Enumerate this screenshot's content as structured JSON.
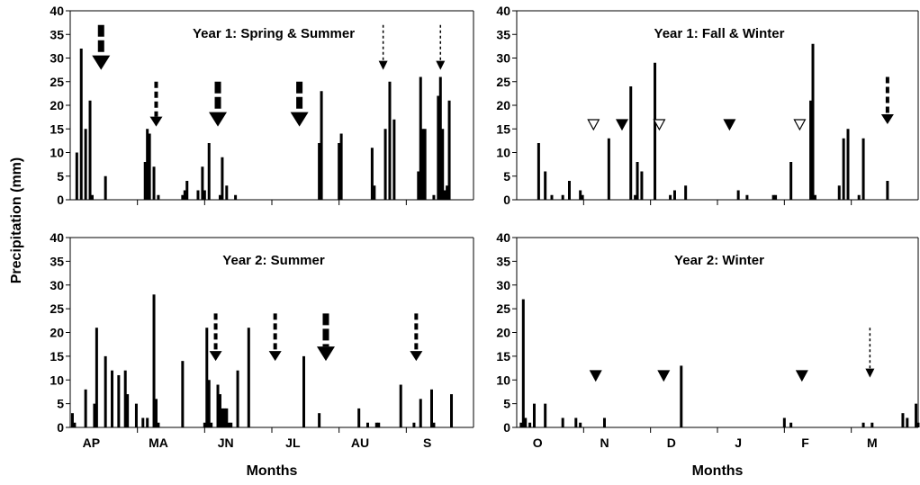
{
  "figure": {
    "ylabel": "Precipitation (mm)",
    "xlabel": "Months"
  },
  "chart_data": [
    {
      "type": "bar",
      "title": "Year 1: Spring & Summer",
      "xlabel": "",
      "ylabel": "Precipitation (mm)",
      "ylim": [
        0,
        40
      ],
      "yticks": [
        0,
        5,
        10,
        15,
        20,
        25,
        30,
        35,
        40
      ],
      "grid": false,
      "xlim": [
        0,
        183
      ],
      "month_labels": [],
      "bars": [
        {
          "x": 3,
          "y": 10
        },
        {
          "x": 5,
          "y": 32
        },
        {
          "x": 7,
          "y": 15
        },
        {
          "x": 9,
          "y": 21
        },
        {
          "x": 10,
          "y": 1
        },
        {
          "x": 16,
          "y": 5
        },
        {
          "x": 34,
          "y": 8
        },
        {
          "x": 35,
          "y": 15
        },
        {
          "x": 36,
          "y": 14
        },
        {
          "x": 38,
          "y": 7
        },
        {
          "x": 40,
          "y": 1
        },
        {
          "x": 51,
          "y": 1
        },
        {
          "x": 52,
          "y": 2
        },
        {
          "x": 53,
          "y": 4
        },
        {
          "x": 58,
          "y": 2
        },
        {
          "x": 60,
          "y": 7
        },
        {
          "x": 61,
          "y": 2
        },
        {
          "x": 63,
          "y": 12
        },
        {
          "x": 68,
          "y": 1
        },
        {
          "x": 69,
          "y": 9
        },
        {
          "x": 71,
          "y": 3
        },
        {
          "x": 75,
          "y": 1
        },
        {
          "x": 113,
          "y": 12
        },
        {
          "x": 114,
          "y": 23
        },
        {
          "x": 122,
          "y": 12
        },
        {
          "x": 123,
          "y": 14
        },
        {
          "x": 137,
          "y": 11
        },
        {
          "x": 138,
          "y": 3
        },
        {
          "x": 143,
          "y": 15
        },
        {
          "x": 145,
          "y": 25
        },
        {
          "x": 147,
          "y": 17
        },
        {
          "x": 158,
          "y": 6
        },
        {
          "x": 159,
          "y": 26
        },
        {
          "x": 160,
          "y": 15
        },
        {
          "x": 161,
          "y": 15
        },
        {
          "x": 165,
          "y": 1
        },
        {
          "x": 167,
          "y": 22
        },
        {
          "x": 168,
          "y": 26
        },
        {
          "x": 169,
          "y": 15
        },
        {
          "x": 170,
          "y": 2
        },
        {
          "x": 171,
          "y": 3
        },
        {
          "x": 172,
          "y": 21
        }
      ],
      "markers": [
        {
          "style": "thick-arrow",
          "x": 14,
          "y_top": 37,
          "y_tip": 27.5
        },
        {
          "style": "dashed-arrow",
          "x": 39,
          "y_top": 25,
          "y_tip": 15.5
        },
        {
          "style": "thick-arrow",
          "x": 67,
          "y_top": 25,
          "y_tip": 15.5
        },
        {
          "style": "thick-arrow",
          "x": 104,
          "y_top": 25,
          "y_tip": 15.5
        },
        {
          "style": "dotted-arrow",
          "x": 142,
          "y_top": 37,
          "y_tip": 27.5
        },
        {
          "style": "dotted-arrow",
          "x": 168,
          "y_top": 37,
          "y_tip": 27.5
        }
      ]
    },
    {
      "type": "bar",
      "title": "Year 1: Fall & Winter",
      "xlabel": "",
      "ylabel": "",
      "ylim": [
        0,
        40
      ],
      "yticks": [
        0,
        5,
        10,
        15,
        20,
        25,
        30,
        35,
        40
      ],
      "grid": false,
      "xlim": [
        0,
        183
      ],
      "month_labels": [],
      "bars": [
        {
          "x": 10,
          "y": 12
        },
        {
          "x": 13,
          "y": 6
        },
        {
          "x": 16,
          "y": 1
        },
        {
          "x": 21,
          "y": 1
        },
        {
          "x": 24,
          "y": 4
        },
        {
          "x": 29,
          "y": 2
        },
        {
          "x": 30,
          "y": 1
        },
        {
          "x": 42,
          "y": 13
        },
        {
          "x": 52,
          "y": 24
        },
        {
          "x": 54,
          "y": 1
        },
        {
          "x": 55,
          "y": 8
        },
        {
          "x": 57,
          "y": 6
        },
        {
          "x": 63,
          "y": 29
        },
        {
          "x": 70,
          "y": 1
        },
        {
          "x": 72,
          "y": 2
        },
        {
          "x": 77,
          "y": 3
        },
        {
          "x": 101,
          "y": 2
        },
        {
          "x": 105,
          "y": 1
        },
        {
          "x": 117,
          "y": 1
        },
        {
          "x": 118,
          "y": 1
        },
        {
          "x": 125,
          "y": 8
        },
        {
          "x": 134,
          "y": 21
        },
        {
          "x": 135,
          "y": 33
        },
        {
          "x": 136,
          "y": 1
        },
        {
          "x": 147,
          "y": 3
        },
        {
          "x": 149,
          "y": 13
        },
        {
          "x": 151,
          "y": 15
        },
        {
          "x": 156,
          "y": 1
        },
        {
          "x": 158,
          "y": 13
        },
        {
          "x": 169,
          "y": 4
        }
      ],
      "markers": [
        {
          "style": "open-triangle",
          "x": 35,
          "y": 16
        },
        {
          "style": "filled-triangle",
          "x": 48,
          "y": 16
        },
        {
          "style": "open-triangle",
          "x": 65,
          "y": 16
        },
        {
          "style": "filled-triangle",
          "x": 97,
          "y": 16
        },
        {
          "style": "open-triangle",
          "x": 129,
          "y": 16
        },
        {
          "style": "dashed-arrow",
          "x": 169,
          "y_top": 26,
          "y_tip": 16
        }
      ]
    },
    {
      "type": "bar",
      "title": "Year 2: Summer",
      "xlabel": "Months",
      "ylabel": "Precipitation (mm)",
      "ylim": [
        0,
        40
      ],
      "yticks": [
        0,
        5,
        10,
        15,
        20,
        25,
        30,
        35,
        40
      ],
      "grid": false,
      "xlim": [
        0,
        183
      ],
      "month_labels": [
        "AP",
        "MA",
        "JN",
        "JL",
        "AU",
        "S"
      ],
      "bars": [
        {
          "x": 1,
          "y": 3
        },
        {
          "x": 2,
          "y": 1
        },
        {
          "x": 7,
          "y": 8
        },
        {
          "x": 11,
          "y": 5
        },
        {
          "x": 12,
          "y": 21
        },
        {
          "x": 16,
          "y": 15
        },
        {
          "x": 19,
          "y": 12
        },
        {
          "x": 22,
          "y": 11
        },
        {
          "x": 25,
          "y": 12
        },
        {
          "x": 26,
          "y": 7
        },
        {
          "x": 30,
          "y": 5
        },
        {
          "x": 33,
          "y": 2
        },
        {
          "x": 35,
          "y": 2
        },
        {
          "x": 38,
          "y": 28
        },
        {
          "x": 39,
          "y": 6
        },
        {
          "x": 40,
          "y": 1
        },
        {
          "x": 51,
          "y": 14
        },
        {
          "x": 61,
          "y": 1
        },
        {
          "x": 62,
          "y": 21
        },
        {
          "x": 63,
          "y": 10
        },
        {
          "x": 64,
          "y": 1
        },
        {
          "x": 67,
          "y": 9
        },
        {
          "x": 68,
          "y": 7
        },
        {
          "x": 69,
          "y": 4
        },
        {
          "x": 70,
          "y": 4
        },
        {
          "x": 71,
          "y": 4
        },
        {
          "x": 72,
          "y": 1
        },
        {
          "x": 73,
          "y": 1
        },
        {
          "x": 76,
          "y": 12
        },
        {
          "x": 81,
          "y": 21
        },
        {
          "x": 106,
          "y": 15
        },
        {
          "x": 113,
          "y": 3
        },
        {
          "x": 131,
          "y": 4
        },
        {
          "x": 135,
          "y": 1
        },
        {
          "x": 139,
          "y": 1
        },
        {
          "x": 140,
          "y": 1
        },
        {
          "x": 150,
          "y": 9
        },
        {
          "x": 156,
          "y": 1
        },
        {
          "x": 159,
          "y": 6
        },
        {
          "x": 164,
          "y": 8
        },
        {
          "x": 165,
          "y": 1
        },
        {
          "x": 173,
          "y": 7
        }
      ],
      "markers": [
        {
          "style": "dashed-arrow",
          "x": 66,
          "y_top": 24,
          "y_tip": 14
        },
        {
          "style": "dashed-arrow",
          "x": 93,
          "y_top": 24,
          "y_tip": 14
        },
        {
          "style": "thick-arrow",
          "x": 116,
          "y_top": 24,
          "y_tip": 14
        },
        {
          "style": "dashed-arrow",
          "x": 157,
          "y_top": 24,
          "y_tip": 14
        }
      ]
    },
    {
      "type": "bar",
      "title": "Year 2: Winter",
      "xlabel": "Months",
      "ylabel": "",
      "ylim": [
        0,
        40
      ],
      "yticks": [
        0,
        5,
        10,
        15,
        20,
        25,
        30,
        35,
        40
      ],
      "grid": false,
      "xlim": [
        0,
        183
      ],
      "month_labels": [
        "O",
        "N",
        "D",
        "J",
        "F",
        "M"
      ],
      "bars": [
        {
          "x": 2,
          "y": 1
        },
        {
          "x": 3,
          "y": 27
        },
        {
          "x": 4,
          "y": 2
        },
        {
          "x": 6,
          "y": 1
        },
        {
          "x": 8,
          "y": 5
        },
        {
          "x": 13,
          "y": 5
        },
        {
          "x": 21,
          "y": 2
        },
        {
          "x": 27,
          "y": 2
        },
        {
          "x": 29,
          "y": 1
        },
        {
          "x": 40,
          "y": 2
        },
        {
          "x": 75,
          "y": 13
        },
        {
          "x": 122,
          "y": 2
        },
        {
          "x": 125,
          "y": 1
        },
        {
          "x": 158,
          "y": 1
        },
        {
          "x": 162,
          "y": 1
        },
        {
          "x": 176,
          "y": 3
        },
        {
          "x": 178,
          "y": 2
        },
        {
          "x": 182,
          "y": 5
        },
        {
          "x": 183,
          "y": 1
        }
      ],
      "markers": [
        {
          "style": "filled-triangle",
          "x": 36,
          "y": 11
        },
        {
          "style": "filled-triangle",
          "x": 67,
          "y": 11
        },
        {
          "style": "filled-triangle",
          "x": 130,
          "y": 11
        },
        {
          "style": "dotted-arrow",
          "x": 161,
          "y_top": 21,
          "y_tip": 10.5
        }
      ]
    }
  ]
}
